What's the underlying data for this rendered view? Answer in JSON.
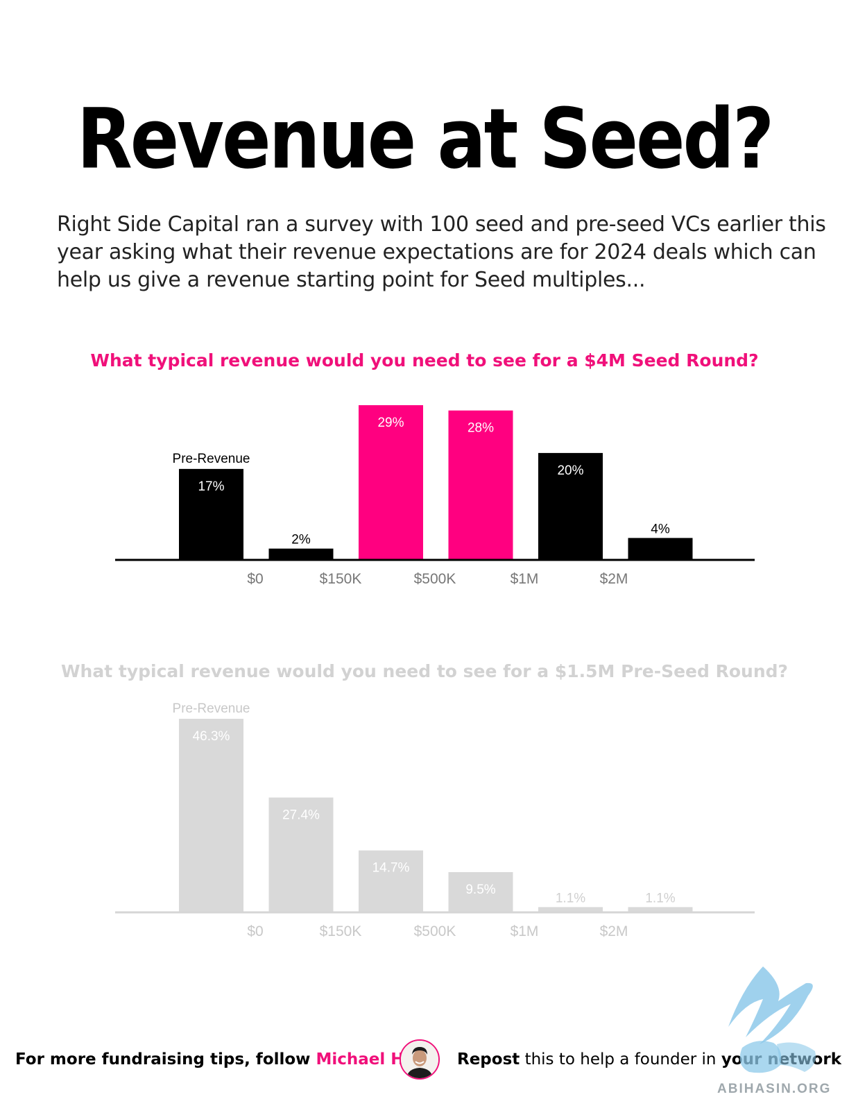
{
  "title": "Revenue at Seed?",
  "intro": "Right Side Capital ran a survey with 100 seed and pre-seed VCs earlier this year asking what their revenue expectations are for 2024 deals which can help us give a revenue starting point for Seed multiples...",
  "colors": {
    "accent": "#ff0080",
    "black": "#000000",
    "muted": "#d9d9d9",
    "muted_text": "#c8c8c8"
  },
  "chart_data": [
    {
      "type": "bar",
      "title": "What typical revenue would you need to see for a $4M Seed Round?",
      "categories": [
        "Pre-Revenue",
        "$0 - $150K",
        "$150K - $500K",
        "$500K - $1M",
        "$1M - $2M",
        "$2M+"
      ],
      "values": [
        17,
        2,
        29,
        28,
        20,
        4
      ],
      "value_labels": [
        "17%",
        "2%",
        "29%",
        "28%",
        "20%",
        "4%"
      ],
      "bar_colors": [
        "#000000",
        "#000000",
        "#ff0080",
        "#ff0080",
        "#000000",
        "#000000"
      ],
      "first_bar_label": "Pre-Revenue",
      "tick_labels": [
        "$0",
        "$150K",
        "$500K",
        "$1M",
        "$2M"
      ],
      "ylim": [
        0,
        29
      ]
    },
    {
      "type": "bar",
      "title": "What typical revenue would you need to see for a $1.5M Pre-Seed Round?",
      "categories": [
        "Pre-Revenue",
        "$0 - $150K",
        "$150K - $500K",
        "$500K - $1M",
        "$1M - $2M",
        "$2M+"
      ],
      "values": [
        46.3,
        27.4,
        14.7,
        9.5,
        1.1,
        1.1
      ],
      "value_labels": [
        "46.3%",
        "27.4%",
        "14.7%",
        "9.5%",
        "1.1%",
        "1.1%"
      ],
      "bar_colors": [
        "#d9d9d9",
        "#d9d9d9",
        "#d9d9d9",
        "#d9d9d9",
        "#d9d9d9",
        "#d9d9d9"
      ],
      "first_bar_label": "Pre-Revenue",
      "tick_labels": [
        "$0",
        "$150K",
        "$500K",
        "$1M",
        "$2M"
      ],
      "ylim": [
        0,
        46.3
      ]
    }
  ],
  "footer": {
    "follow_text": "For more fundraising tips, follow ",
    "follow_name": "Michael Ho",
    "repost_bold1": "Repost",
    "repost_light": " this to help a founder in ",
    "repost_bold2": "your network"
  },
  "watermark_text": "ABIHASIN.ORG"
}
